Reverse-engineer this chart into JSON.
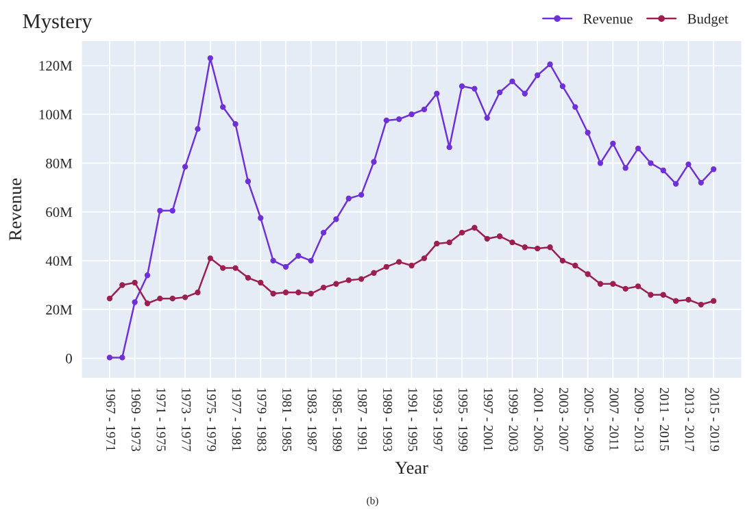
{
  "chart_data": {
    "type": "line",
    "title": "Mystery",
    "xlabel": "Year",
    "ylabel": "Revenue",
    "categories": [
      "1967 - 1971",
      null,
      "1969 - 1973",
      null,
      "1971 - 1975",
      null,
      "1973 - 1977",
      null,
      "1975 - 1979",
      null,
      "1977 - 1981",
      null,
      "1979 - 1983",
      null,
      "1981 - 1985",
      null,
      "1983 - 1987",
      null,
      "1985 - 1989",
      null,
      "1987 - 1991",
      null,
      "1989 - 1993",
      null,
      "1991 - 1995",
      null,
      "1993 - 1997",
      null,
      "1995 - 1999",
      null,
      "1997 - 2001",
      null,
      "1999 - 2003",
      null,
      "2001 - 2005",
      null,
      "2003 - 2007",
      null,
      "2005 - 2009",
      null,
      "2007 - 2011",
      null,
      "2009 - 2013",
      null,
      "2011 - 2015",
      null,
      "2013 - 2017",
      null,
      "2015 - 2019"
    ],
    "series": [
      {
        "name": "Revenue",
        "color": "#7030d8",
        "values": [
          300000,
          300000,
          23000000,
          34000000,
          60500000,
          60500000,
          78500000,
          94000000,
          123000000,
          103000000,
          96000000,
          72500000,
          57500000,
          40000000,
          37500000,
          42000000,
          40000000,
          51500000,
          57000000,
          65500000,
          67000000,
          80500000,
          97500000,
          98000000,
          100000000,
          102000000,
          108500000,
          86500000,
          111500000,
          110500000,
          98500000,
          109000000,
          113500000,
          108500000,
          116000000,
          120500000,
          111500000,
          103000000,
          92500000,
          80000000,
          88000000,
          78000000,
          86000000,
          80000000,
          77000000,
          71500000,
          79500000,
          72000000,
          77500000
        ]
      },
      {
        "name": "Budget",
        "color": "#9c1f50",
        "values": [
          24500000,
          30000000,
          31000000,
          22500000,
          24500000,
          24500000,
          25000000,
          27000000,
          41000000,
          37000000,
          37000000,
          33000000,
          31000000,
          26500000,
          27000000,
          27000000,
          26500000,
          29000000,
          30500000,
          32000000,
          32500000,
          35000000,
          37500000,
          39500000,
          38000000,
          41000000,
          47000000,
          47500000,
          51500000,
          53500000,
          49000000,
          50000000,
          47500000,
          45500000,
          45000000,
          45500000,
          40000000,
          38000000,
          34500000,
          30500000,
          30500000,
          28500000,
          29500000,
          26000000,
          26000000,
          23500000,
          24000000,
          22000000,
          23500000
        ]
      }
    ],
    "ylim": [
      -8000000,
      130000000
    ],
    "yticks": [
      {
        "value": 0,
        "label": "0"
      },
      {
        "value": 20000000,
        "label": "20M"
      },
      {
        "value": 40000000,
        "label": "40M"
      },
      {
        "value": 60000000,
        "label": "60M"
      },
      {
        "value": 80000000,
        "label": "80M"
      },
      {
        "value": 100000000,
        "label": "100M"
      },
      {
        "value": 120000000,
        "label": "120M"
      }
    ],
    "grid": true,
    "legend": "top right",
    "marker": "circle",
    "line_style": "solid",
    "annotations": [
      "(b)"
    ]
  }
}
